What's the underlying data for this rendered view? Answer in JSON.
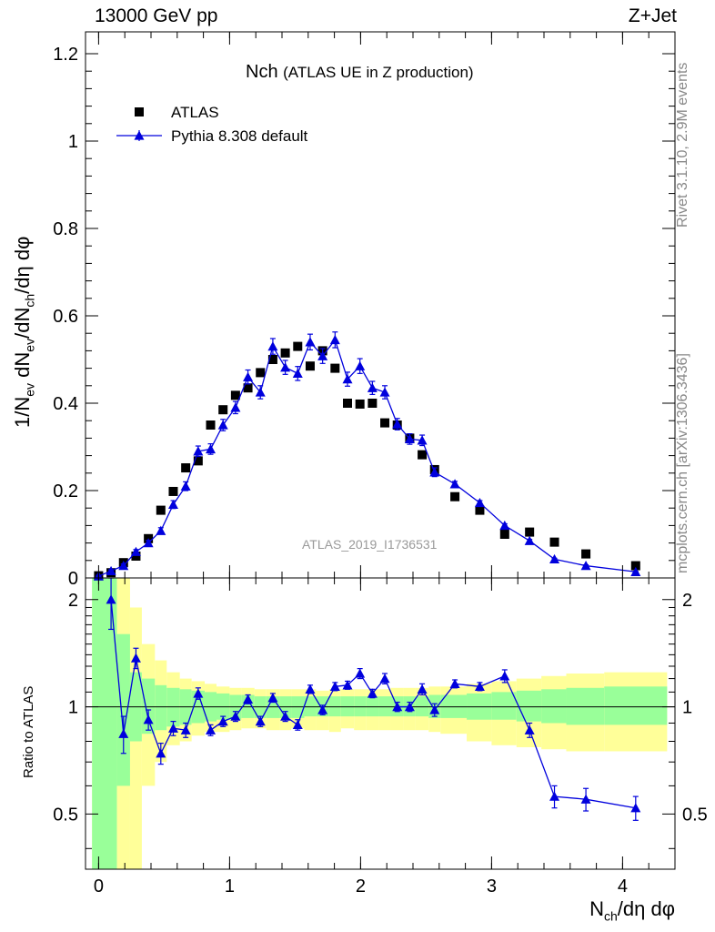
{
  "header": {
    "energy_label": "13000 GeV pp",
    "process_label": "Z+Jet"
  },
  "plot": {
    "title_main": "Nch",
    "title_sub": "(ATLAS UE in Z production)",
    "analysis_id": "ATLAS_2019_I1736531",
    "side_rivet": "Rivet 3.1.10,  2.9M events",
    "side_mcplots": "mcplots.cern.ch [arXiv:1306.3436]",
    "ylabel_top": {
      "prefix": "1/N",
      "sub1": "ev",
      "mid": " dN",
      "sub2": "ev",
      "mid2": "/dN",
      "sub3": "ch",
      "suffix": "/dη dφ"
    },
    "ylabel_bottom": "Ratio to ATLAS",
    "xlabel": {
      "prefix": "N",
      "sub": "ch",
      "suffix": "/dη dφ"
    },
    "legend": [
      {
        "label": "ATLAS"
      },
      {
        "label": "Pythia 8.308 default"
      }
    ]
  },
  "chart_data": {
    "type": "scatter",
    "top_panel": {
      "xlim": [
        -0.1,
        4.4
      ],
      "ylim": [
        0,
        1.25
      ],
      "yticks": [
        0,
        0.2,
        0.4,
        0.6,
        0.8,
        1,
        1.2
      ],
      "ytick_labels": [
        "0",
        "0.2",
        "0.4",
        "0.6",
        "0.8",
        "1",
        "1.2"
      ],
      "series": [
        {
          "name": "ATLAS",
          "style": "square-marker",
          "color": "#000000",
          "x": [
            0.0,
            0.095,
            0.19,
            0.285,
            0.38,
            0.475,
            0.57,
            0.665,
            0.76,
            0.855,
            0.95,
            1.045,
            1.14,
            1.235,
            1.33,
            1.425,
            1.52,
            1.615,
            1.71,
            1.805,
            1.9,
            1.995,
            2.09,
            2.185,
            2.28,
            2.375,
            2.47,
            2.565,
            2.72,
            2.91,
            3.1,
            3.29,
            3.48,
            3.72,
            4.1
          ],
          "y": [
            0.005,
            0.012,
            0.035,
            0.05,
            0.09,
            0.155,
            0.198,
            0.252,
            0.268,
            0.35,
            0.385,
            0.418,
            0.435,
            0.47,
            0.5,
            0.515,
            0.53,
            0.485,
            0.52,
            0.48,
            0.4,
            0.398,
            0.4,
            0.355,
            0.35,
            0.32,
            0.282,
            0.248,
            0.186,
            0.155,
            0.1,
            0.105,
            0.082,
            0.055,
            0.028
          ]
        },
        {
          "name": "Pythia 8.308 default",
          "style": "triangle-line",
          "color": "#0000dd",
          "x": [
            0.0,
            0.095,
            0.19,
            0.285,
            0.38,
            0.475,
            0.57,
            0.665,
            0.76,
            0.855,
            0.95,
            1.045,
            1.14,
            1.235,
            1.33,
            1.425,
            1.52,
            1.615,
            1.71,
            1.805,
            1.9,
            1.995,
            2.09,
            2.185,
            2.28,
            2.375,
            2.47,
            2.565,
            2.72,
            2.91,
            3.1,
            3.29,
            3.48,
            3.72,
            4.1
          ],
          "y": [
            0.004,
            0.016,
            0.028,
            0.06,
            0.08,
            0.108,
            0.168,
            0.21,
            0.29,
            0.295,
            0.35,
            0.39,
            0.46,
            0.425,
            0.53,
            0.482,
            0.468,
            0.54,
            0.508,
            0.545,
            0.455,
            0.485,
            0.435,
            0.425,
            0.352,
            0.318,
            0.315,
            0.242,
            0.215,
            0.172,
            0.12,
            0.085,
            0.043,
            0.028,
            0.014
          ],
          "yerr": [
            0.002,
            0.003,
            0.004,
            0.005,
            0.006,
            0.007,
            0.009,
            0.01,
            0.012,
            0.012,
            0.013,
            0.014,
            0.016,
            0.015,
            0.018,
            0.016,
            0.016,
            0.018,
            0.017,
            0.018,
            0.016,
            0.017,
            0.015,
            0.015,
            0.013,
            0.012,
            0.012,
            0.01,
            0.006,
            0.005,
            0.004,
            0.003,
            0.002,
            0.002,
            0.001
          ]
        }
      ]
    },
    "bottom_panel": {
      "xlim": [
        -0.1,
        4.4
      ],
      "ylim": [
        0.35,
        2.3
      ],
      "scale": "log",
      "yticks": [
        0.5,
        1,
        2
      ],
      "ytick_labels": [
        "0.5",
        "1",
        "2"
      ],
      "xticks": [
        0,
        1,
        2,
        3,
        4
      ],
      "xtick_labels": [
        "0",
        "1",
        "2",
        "3",
        "4"
      ],
      "reference_line": 1,
      "bands": {
        "edges": [
          -0.05,
          0.14,
          0.24,
          0.33,
          0.43,
          0.52,
          0.62,
          0.71,
          0.81,
          0.9,
          1.0,
          1.09,
          1.19,
          1.28,
          1.38,
          1.47,
          1.57,
          1.66,
          1.76,
          1.85,
          1.95,
          2.04,
          2.14,
          2.23,
          2.33,
          2.42,
          2.52,
          2.61,
          2.81,
          3.0,
          3.19,
          3.38,
          3.57,
          3.86,
          4.34
        ],
        "green_low": [
          0.1,
          0.6,
          0.8,
          0.84,
          0.86,
          0.88,
          0.89,
          0.9,
          0.91,
          0.92,
          0.92,
          0.93,
          0.93,
          0.93,
          0.93,
          0.93,
          0.94,
          0.94,
          0.94,
          0.94,
          0.94,
          0.94,
          0.94,
          0.94,
          0.94,
          0.94,
          0.93,
          0.93,
          0.92,
          0.92,
          0.91,
          0.9,
          0.89,
          0.89
        ],
        "green_high": [
          3.0,
          1.6,
          1.25,
          1.2,
          1.15,
          1.13,
          1.12,
          1.11,
          1.1,
          1.09,
          1.08,
          1.08,
          1.07,
          1.07,
          1.07,
          1.07,
          1.07,
          1.07,
          1.07,
          1.07,
          1.07,
          1.07,
          1.07,
          1.07,
          1.07,
          1.07,
          1.08,
          1.08,
          1.09,
          1.1,
          1.11,
          1.12,
          1.13,
          1.14
        ],
        "yellow_low": [
          0.1,
          0.1,
          0.35,
          0.6,
          0.7,
          0.78,
          0.8,
          0.83,
          0.85,
          0.85,
          0.86,
          0.87,
          0.87,
          0.86,
          0.86,
          0.87,
          0.86,
          0.86,
          0.85,
          0.87,
          0.86,
          0.86,
          0.86,
          0.86,
          0.86,
          0.86,
          0.85,
          0.84,
          0.8,
          0.78,
          0.77,
          0.76,
          0.75,
          0.75
        ],
        "yellow_high": [
          3.0,
          3.0,
          1.9,
          1.5,
          1.35,
          1.25,
          1.2,
          1.18,
          1.16,
          1.14,
          1.13,
          1.13,
          1.12,
          1.12,
          1.12,
          1.12,
          1.12,
          1.11,
          1.12,
          1.12,
          1.12,
          1.12,
          1.12,
          1.13,
          1.13,
          1.13,
          1.14,
          1.14,
          1.16,
          1.18,
          1.2,
          1.22,
          1.24,
          1.25
        ]
      },
      "series": [
        {
          "name": "Pythia 8.308 default / ATLAS",
          "color": "#0000dd",
          "x": [
            0.095,
            0.19,
            0.285,
            0.38,
            0.475,
            0.57,
            0.665,
            0.76,
            0.855,
            0.95,
            1.045,
            1.14,
            1.235,
            1.33,
            1.425,
            1.52,
            1.615,
            1.71,
            1.805,
            1.9,
            1.995,
            2.09,
            2.185,
            2.28,
            2.375,
            2.47,
            2.565,
            2.72,
            2.91,
            3.1,
            3.29,
            3.48,
            3.72,
            4.1
          ],
          "y": [
            2.0,
            0.84,
            1.37,
            0.92,
            0.74,
            0.87,
            0.86,
            1.09,
            0.86,
            0.91,
            0.94,
            1.05,
            0.91,
            1.06,
            0.94,
            0.89,
            1.12,
            0.98,
            1.14,
            1.15,
            1.24,
            1.09,
            1.2,
            1.0,
            1.0,
            1.12,
            0.98,
            1.16,
            1.14,
            1.22,
            0.86,
            0.56,
            0.55,
            0.52
          ],
          "yerr": [
            0.35,
            0.1,
            0.09,
            0.06,
            0.05,
            0.04,
            0.04,
            0.04,
            0.03,
            0.03,
            0.03,
            0.03,
            0.03,
            0.03,
            0.03,
            0.03,
            0.03,
            0.03,
            0.03,
            0.03,
            0.04,
            0.03,
            0.04,
            0.03,
            0.03,
            0.04,
            0.04,
            0.03,
            0.03,
            0.05,
            0.04,
            0.04,
            0.04,
            0.04
          ]
        }
      ]
    }
  }
}
